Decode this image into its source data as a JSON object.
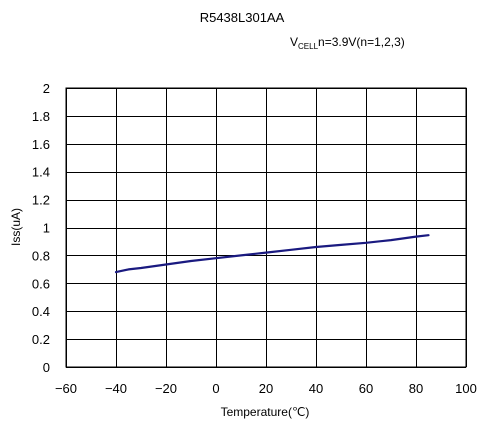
{
  "chart_data": {
    "type": "line",
    "title": "R5438L301AA",
    "condition": {
      "prefix": "V",
      "subscript": "CELL",
      "rest": "n=3.9V(n=1,2,3)"
    },
    "xlabel": "Temperature(℃)",
    "ylabel": "Iss(uA)",
    "xlim": [
      -60,
      100
    ],
    "ylim": [
      0,
      2
    ],
    "x_ticks": [
      -60,
      -40,
      -20,
      0,
      20,
      40,
      60,
      80,
      100
    ],
    "y_ticks": [
      0,
      0.2,
      0.4,
      0.6,
      0.8,
      1,
      1.2,
      1.4,
      1.6,
      1.8,
      2
    ],
    "grid": true,
    "series": [
      {
        "color": "#1a1a80",
        "x": [
          -40,
          -35,
          -30,
          -20,
          -10,
          0,
          10,
          20,
          30,
          40,
          50,
          60,
          70,
          80,
          85
        ],
        "y": [
          0.68,
          0.7,
          0.71,
          0.735,
          0.76,
          0.78,
          0.8,
          0.82,
          0.84,
          0.86,
          0.875,
          0.89,
          0.91,
          0.935,
          0.945
        ]
      }
    ]
  }
}
